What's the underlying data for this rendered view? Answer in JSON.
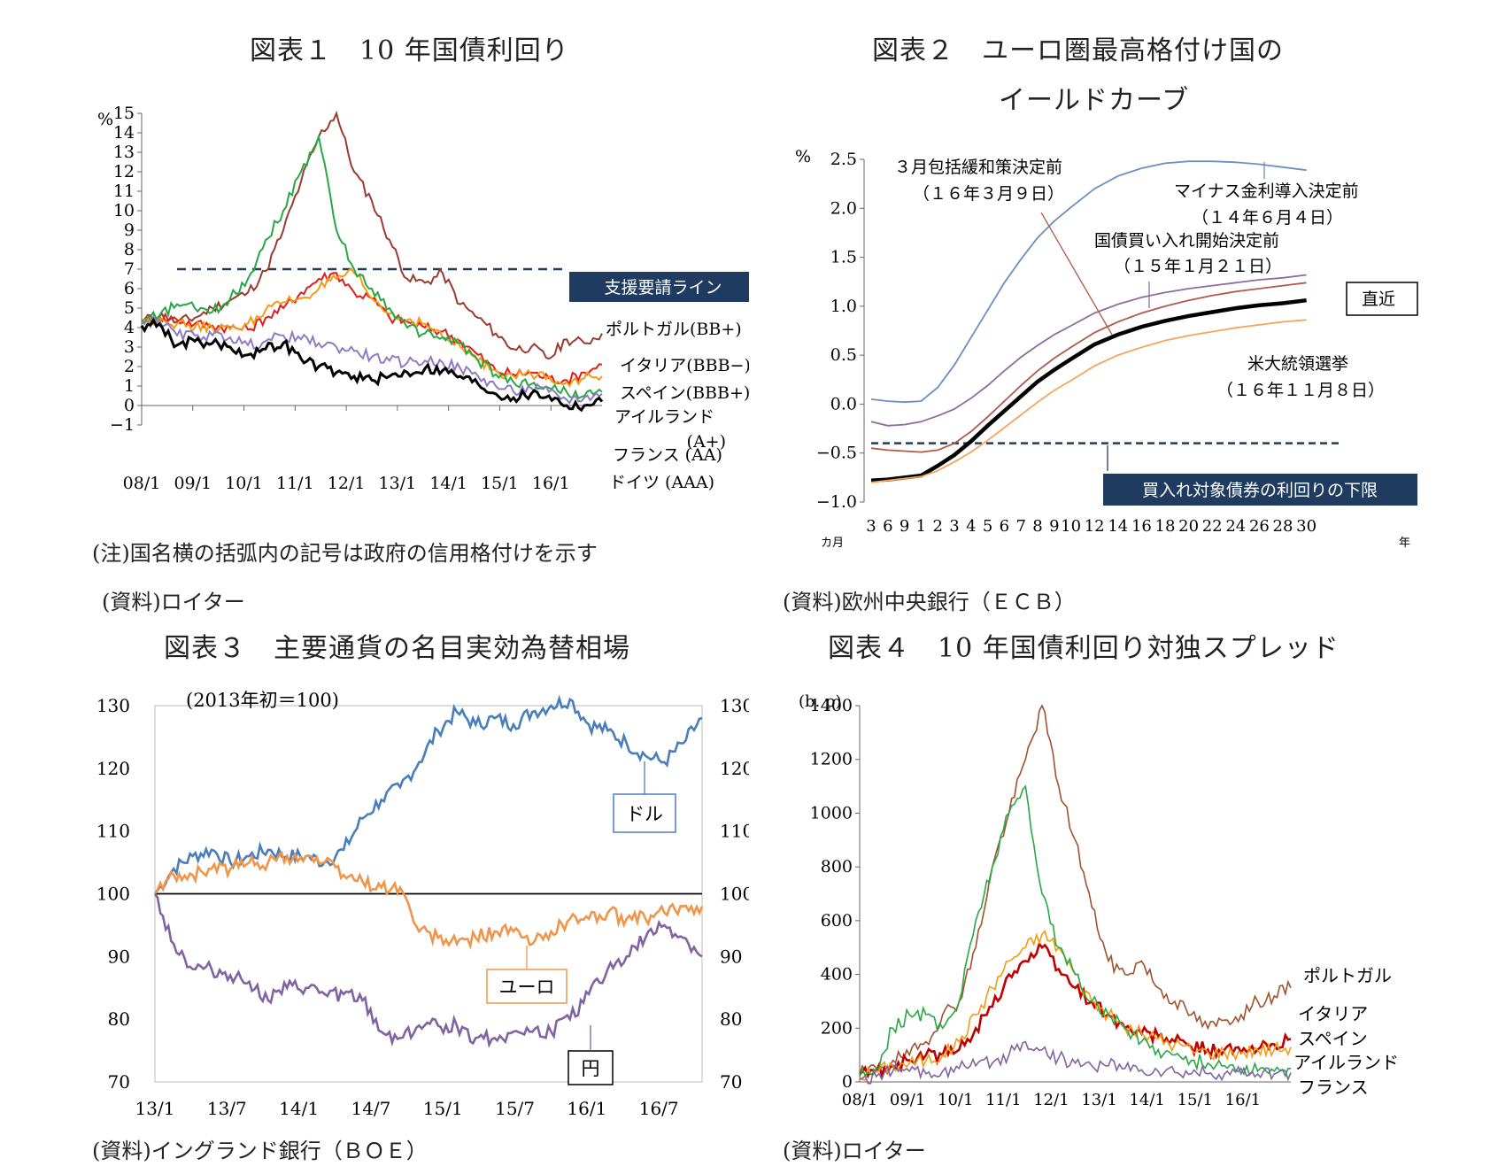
{
  "charts": [
    {
      "type": "line",
      "title": "図表１　10 年国債利回り",
      "y_unit": "%",
      "ylim": [
        -1,
        15
      ],
      "y_ticks": [
        -1,
        0,
        1,
        2,
        3,
        4,
        5,
        6,
        7,
        8,
        9,
        10,
        11,
        12,
        13,
        14,
        15
      ],
      "x_ticks": [
        "08/1",
        "09/1",
        "10/1",
        "11/1",
        "12/1",
        "13/1",
        "14/1",
        "15/1",
        "16/1"
      ],
      "reference_line": {
        "label": "支援要請ライン",
        "value": 7
      },
      "series": [
        {
          "name": "ポルトガル(BB+)",
          "color": "#9a3b2e",
          "values": [
            4.3,
            4.6,
            4.3,
            4.5,
            5.0,
            5.4,
            5.8,
            6.9,
            9.0,
            11.5,
            13.8,
            15.0,
            12.0,
            10.5,
            8.5,
            6.5,
            6.3,
            6.8,
            5.2,
            4.5,
            3.7,
            2.9,
            3.0,
            2.4,
            3.4,
            3.2,
            3.7
          ]
        },
        {
          "name": "イタリア(BBB−)",
          "color": "#e41a1c",
          "values": [
            4.4,
            4.6,
            4.4,
            4.2,
            4.1,
            4.0,
            3.9,
            4.5,
            5.0,
            5.8,
            6.5,
            6.8,
            5.8,
            5.5,
            4.5,
            4.3,
            4.0,
            3.8,
            3.3,
            2.6,
            1.8,
            1.6,
            1.7,
            1.4,
            1.3,
            1.7,
            2.1
          ]
        },
        {
          "name": "スペイン(BBB+)",
          "color": "#f39c12",
          "values": [
            4.3,
            4.5,
            4.2,
            4.0,
            4.0,
            3.9,
            4.2,
            4.9,
            5.3,
            5.5,
            6.0,
            6.5,
            6.8,
            5.5,
            4.7,
            4.4,
            4.2,
            3.5,
            3.0,
            2.3,
            1.8,
            1.5,
            1.6,
            1.5,
            1.2,
            1.4,
            1.5
          ]
        },
        {
          "name": "アイルランド(A+)",
          "color": "#27a844",
          "values": [
            4.4,
            4.6,
            5.2,
            5.0,
            4.8,
            5.5,
            6.5,
            8.5,
            10.0,
            12.0,
            13.8,
            9.0,
            7.0,
            6.0,
            5.0,
            4.0,
            3.7,
            3.5,
            3.2,
            2.3,
            1.6,
            1.2,
            1.1,
            0.9,
            0.7,
            0.5,
            0.7
          ]
        },
        {
          "name": "フランス (AA)",
          "color": "#8e7cc3",
          "values": [
            4.2,
            4.4,
            3.6,
            3.6,
            3.6,
            3.5,
            3.1,
            3.3,
            3.6,
            3.4,
            3.2,
            3.0,
            2.8,
            2.5,
            2.3,
            2.2,
            2.3,
            2.2,
            1.9,
            1.5,
            1.0,
            0.7,
            0.9,
            0.7,
            0.3,
            0.4,
            0.6
          ]
        },
        {
          "name": "ドイツ (AAA)",
          "color": "#000000",
          "values": [
            4.1,
            4.2,
            3.1,
            3.3,
            3.2,
            3.0,
            2.6,
            2.9,
            3.2,
            2.4,
            2.0,
            1.7,
            1.5,
            1.3,
            1.5,
            1.7,
            1.9,
            1.8,
            1.5,
            1.1,
            0.6,
            0.4,
            0.6,
            0.5,
            0.0,
            0.0,
            0.2
          ]
        }
      ],
      "labels": [
        "ポルトガル(BB+)",
        "イタリア(BBB−)",
        "スペイン(BBB+)",
        "アイルランド",
        "(A+)",
        "フランス (AA)",
        "ドイツ (AAA)"
      ],
      "notes": [
        "(注)国名横の括弧内の記号は政府の信用格付けを示す",
        "(資料)ロイター"
      ]
    },
    {
      "type": "line",
      "title_lines": [
        "図表２　ユーロ圏最高格付け国の",
        "イールドカーブ"
      ],
      "y_unit": "%",
      "ylim": [
        -1.0,
        2.5
      ],
      "y_ticks": [
        -1.0,
        -0.5,
        0.0,
        0.5,
        1.0,
        1.5,
        2.0,
        2.5
      ],
      "y_tick_labels": [
        "−1.0",
        "−0.5",
        "0.0",
        "0.5",
        "1.0",
        "1.5",
        "2.0",
        "2.5"
      ],
      "x_ticks": [
        "3",
        "6",
        "9",
        "1",
        "2",
        "3",
        "4",
        "5",
        "6",
        "7",
        "8",
        "9",
        "10",
        "12",
        "14",
        "16",
        "18",
        "20",
        "22",
        "24",
        "26",
        "28",
        "30"
      ],
      "x_unit_months": "カ月",
      "x_unit_years": "年",
      "x_maturity_years": [
        0.25,
        0.5,
        0.75,
        1,
        2,
        3,
        4,
        5,
        6,
        7,
        8,
        9,
        10,
        12,
        14,
        16,
        18,
        20,
        22,
        24,
        26,
        28,
        30
      ],
      "reference_line": {
        "label": "買入れ対象債券の利回りの下限",
        "value": -0.4
      },
      "series": [
        {
          "name": "マイナス金利導入決定前（１４年６月４日）",
          "color": "#6a8fc0",
          "values": [
            0.05,
            0.03,
            0.02,
            0.03,
            0.17,
            0.4,
            0.68,
            0.96,
            1.24,
            1.48,
            1.7,
            1.87,
            2.01,
            2.2,
            2.33,
            2.41,
            2.46,
            2.48,
            2.48,
            2.47,
            2.45,
            2.42,
            2.39
          ]
        },
        {
          "name": "国債買い入れ開始決定前（１５年１月２１日）",
          "color": "#8e6c9e",
          "values": [
            -0.18,
            -0.22,
            -0.21,
            -0.18,
            -0.12,
            -0.05,
            0.06,
            0.19,
            0.34,
            0.48,
            0.6,
            0.71,
            0.8,
            0.93,
            1.02,
            1.09,
            1.14,
            1.18,
            1.21,
            1.24,
            1.27,
            1.29,
            1.32
          ]
        },
        {
          "name": "３月包括緩和策決定前（１６年３月９日）",
          "color": "#b05a4a",
          "values": [
            -0.45,
            -0.47,
            -0.48,
            -0.49,
            -0.47,
            -0.4,
            -0.28,
            -0.13,
            0.03,
            0.19,
            0.34,
            0.47,
            0.58,
            0.73,
            0.84,
            0.93,
            1.0,
            1.06,
            1.11,
            1.15,
            1.18,
            1.21,
            1.24
          ]
        },
        {
          "name": "直近",
          "color": "#000000",
          "values": [
            -0.78,
            -0.77,
            -0.75,
            -0.73,
            -0.63,
            -0.52,
            -0.38,
            -0.22,
            -0.07,
            0.08,
            0.23,
            0.35,
            0.46,
            0.61,
            0.71,
            0.79,
            0.85,
            0.9,
            0.94,
            0.98,
            1.01,
            1.03,
            1.06
          ]
        },
        {
          "name": "米大統領選挙（１６年１１月８日）",
          "color": "#f5a45c",
          "values": [
            -0.8,
            -0.78,
            -0.76,
            -0.74,
            -0.68,
            -0.59,
            -0.49,
            -0.37,
            -0.24,
            -0.11,
            0.02,
            0.14,
            0.24,
            0.39,
            0.5,
            0.58,
            0.65,
            0.7,
            0.74,
            0.78,
            0.81,
            0.84,
            0.86
          ]
        }
      ],
      "labels": [
        "３月包括緩和策決定前",
        "（１６年３月９日）",
        "マイナス金利導入決定前",
        "（１４年６月４日）",
        "国債買い入れ開始決定前",
        "（１５年１月２１日）",
        "直近",
        "米大統領選挙",
        "（１６年１１月８日）"
      ],
      "notes": [
        "(資料)欧州中央銀行（ＥＣＢ）"
      ]
    },
    {
      "type": "line",
      "title": "図表３　主要通貨の名目実効為替相場",
      "subtitle": "(2013年初＝100)",
      "ylim": [
        70,
        130
      ],
      "y_ticks": [
        70,
        80,
        90,
        100,
        110,
        120,
        130
      ],
      "x_ticks": [
        "13/1",
        "13/7",
        "14/1",
        "14/7",
        "15/1",
        "15/7",
        "16/1",
        "16/7"
      ],
      "reference_line": {
        "value": 100
      },
      "series": [
        {
          "name": "ドル",
          "color": "#4a7ebb",
          "values": [
            100,
            104,
            106,
            107,
            105,
            106,
            107,
            106,
            106,
            105,
            107,
            112,
            115,
            117,
            121,
            126,
            129,
            127,
            128,
            127,
            129,
            130,
            131,
            127,
            126,
            124,
            122,
            121,
            124,
            128
          ]
        },
        {
          "name": "ユーロ",
          "color": "#f0954a",
          "values": [
            100,
            103,
            103,
            104,
            104,
            105,
            105,
            106,
            106,
            105,
            103,
            102,
            101,
            101,
            94,
            93,
            92,
            93,
            94,
            94,
            92,
            94,
            96,
            96,
            97,
            96,
            96,
            97,
            98,
            98
          ]
        },
        {
          "name": "円",
          "color": "#8064a2",
          "values": [
            100,
            92,
            88,
            88,
            87,
            86,
            83,
            85,
            85,
            84,
            84,
            83,
            78,
            77,
            79,
            79,
            79,
            77,
            77,
            78,
            78,
            78,
            80,
            84,
            88,
            90,
            93,
            95,
            93,
            90
          ]
        }
      ],
      "labels": [
        "ドル",
        "ユーロ",
        "円"
      ],
      "notes": [
        "(資料)イングランド銀行（ＢＯＥ）"
      ]
    },
    {
      "type": "line",
      "title": "図表４　10 年国債利回り対独スプレッド",
      "y_unit": "(b. p)",
      "ylim": [
        0,
        1400
      ],
      "y_ticks": [
        0,
        200,
        400,
        600,
        800,
        1000,
        1200,
        1400
      ],
      "x_ticks": [
        "08/1",
        "09/1",
        "10/1",
        "11/1",
        "12/1",
        "13/1",
        "14/1",
        "15/1",
        "16/1"
      ],
      "series": [
        {
          "name": "ポルトガル",
          "color": "#a0522d",
          "values": [
            30,
            50,
            80,
            100,
            150,
            250,
            300,
            500,
            800,
            1000,
            1200,
            1400,
            1100,
            900,
            650,
            450,
            400,
            450,
            350,
            300,
            250,
            200,
            230,
            250,
            300,
            320,
            350
          ]
        },
        {
          "name": "イタリア",
          "color": "#c00000",
          "values": [
            30,
            40,
            60,
            80,
            100,
            100,
            120,
            200,
            280,
            400,
            450,
            500,
            420,
            350,
            300,
            250,
            200,
            180,
            170,
            150,
            130,
            120,
            120,
            110,
            120,
            140,
            160
          ]
        },
        {
          "name": "スペイン",
          "color": "#f39c12",
          "values": [
            20,
            40,
            60,
            70,
            80,
            100,
            150,
            250,
            350,
            450,
            500,
            550,
            500,
            400,
            300,
            250,
            200,
            180,
            160,
            140,
            120,
            110,
            110,
            110,
            120,
            120,
            130
          ]
        },
        {
          "name": "アイルランド",
          "color": "#27a844",
          "values": [
            20,
            50,
            200,
            250,
            250,
            200,
            300,
            600,
            800,
            1000,
            1100,
            700,
            500,
            400,
            300,
            250,
            200,
            150,
            120,
            100,
            80,
            70,
            60,
            50,
            40,
            40,
            50
          ]
        },
        {
          "name": "フランス",
          "color": "#8064a2",
          "values": [
            10,
            20,
            40,
            40,
            30,
            40,
            50,
            60,
            70,
            100,
            150,
            120,
            90,
            70,
            60,
            60,
            50,
            45,
            40,
            35,
            30,
            30,
            30,
            30,
            30,
            30,
            35
          ]
        }
      ],
      "labels": [
        "ポルトガル",
        "イタリア",
        "スペイン",
        "アイルランド",
        "フランス"
      ],
      "notes": [
        "(資料)ロイター"
      ]
    }
  ]
}
